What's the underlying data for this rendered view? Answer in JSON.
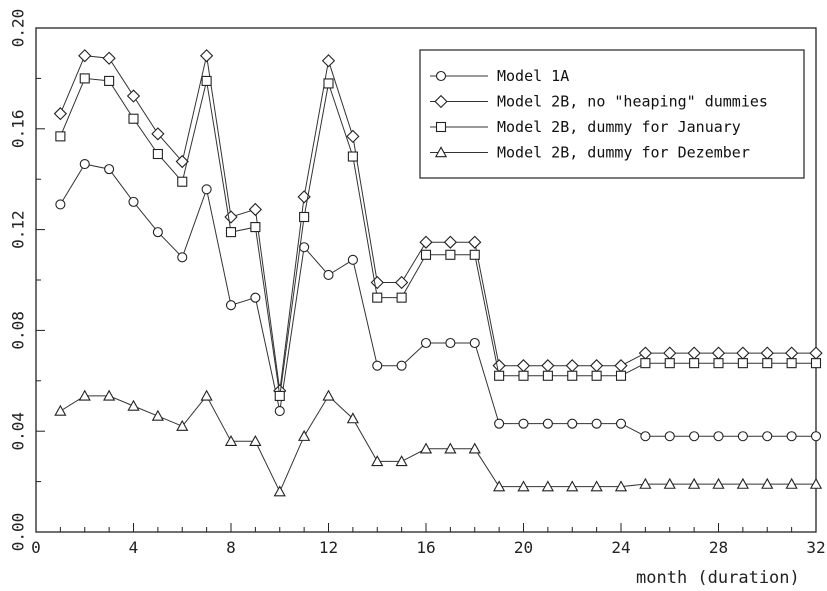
{
  "chart_data": {
    "type": "line",
    "title": "",
    "xlabel": "month (duration)",
    "ylabel": "",
    "xlim": [
      0,
      32
    ],
    "ylim": [
      0.0,
      0.2
    ],
    "xticks": [
      0,
      4,
      8,
      12,
      16,
      20,
      24,
      28,
      32
    ],
    "xtick_labels": [
      "0",
      "4",
      "8",
      "12",
      "16",
      "20",
      "24",
      "28",
      "32"
    ],
    "yticks": [
      0.0,
      0.04,
      0.08,
      0.12,
      0.16,
      0.2
    ],
    "ytick_labels": [
      "0.00",
      "0.04",
      "0.08",
      "0.12",
      "0.16",
      "0.20"
    ],
    "grid": false,
    "legend": {
      "position": "top-right"
    },
    "x": [
      1,
      2,
      3,
      4,
      5,
      6,
      7,
      8,
      9,
      10,
      11,
      12,
      13,
      14,
      15,
      16,
      17,
      18,
      19,
      20,
      21,
      22,
      23,
      24,
      25,
      26,
      27,
      28,
      29,
      30,
      31,
      32
    ],
    "series": [
      {
        "name": "Model 1A",
        "marker": "circle",
        "values": [
          0.13,
          0.146,
          0.144,
          0.131,
          0.119,
          0.109,
          0.136,
          0.09,
          0.093,
          0.048,
          0.113,
          0.102,
          0.108,
          0.066,
          0.066,
          0.075,
          0.075,
          0.075,
          0.043,
          0.043,
          0.043,
          0.043,
          0.043,
          0.043,
          0.038,
          0.038,
          0.038,
          0.038,
          0.038,
          0.038,
          0.038,
          0.038
        ]
      },
      {
        "name": "Model 2B, no \"heaping\" dummies",
        "marker": "diamond",
        "values": [
          0.166,
          0.189,
          0.188,
          0.173,
          0.158,
          0.147,
          0.189,
          0.125,
          0.128,
          0.056,
          0.133,
          0.187,
          0.157,
          0.099,
          0.099,
          0.115,
          0.115,
          0.115,
          0.066,
          0.066,
          0.066,
          0.066,
          0.066,
          0.066,
          0.071,
          0.071,
          0.071,
          0.071,
          0.071,
          0.071,
          0.071,
          0.071
        ]
      },
      {
        "name": "Model 2B, dummy for January",
        "marker": "square",
        "values": [
          0.157,
          0.18,
          0.179,
          0.164,
          0.15,
          0.139,
          0.179,
          0.119,
          0.121,
          0.054,
          0.125,
          0.178,
          0.149,
          0.093,
          0.093,
          0.11,
          0.11,
          0.11,
          0.062,
          0.062,
          0.062,
          0.062,
          0.062,
          0.062,
          0.067,
          0.067,
          0.067,
          0.067,
          0.067,
          0.067,
          0.067,
          0.067
        ]
      },
      {
        "name": "Model 2B, dummy for Dezember",
        "marker": "triangle",
        "values": [
          0.048,
          0.054,
          0.054,
          0.05,
          0.046,
          0.042,
          0.054,
          0.036,
          0.036,
          0.016,
          0.038,
          0.054,
          0.045,
          0.028,
          0.028,
          0.033,
          0.033,
          0.033,
          0.018,
          0.018,
          0.018,
          0.018,
          0.018,
          0.018,
          0.019,
          0.019,
          0.019,
          0.019,
          0.019,
          0.019,
          0.019,
          0.019
        ]
      }
    ]
  }
}
